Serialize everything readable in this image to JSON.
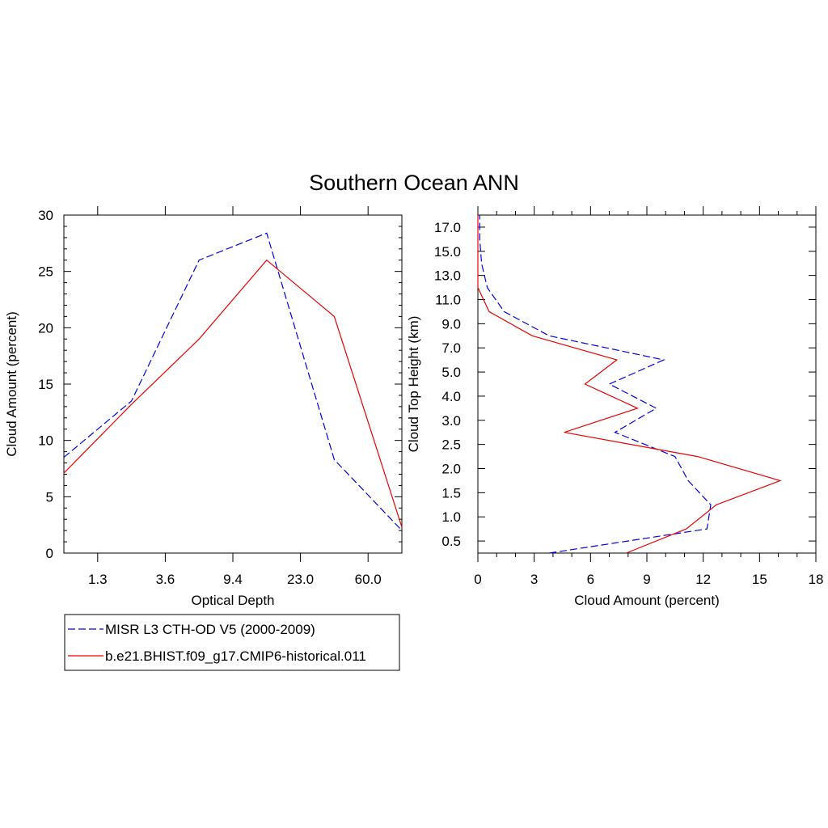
{
  "title": "Southern Ocean ANN",
  "colors": {
    "obs": "#0000ee",
    "model": "#ee0000"
  },
  "legend": [
    {
      "label": "MISR L3 CTH-OD V5 (2000-2009)",
      "color": "#0000ee",
      "dash": true
    },
    {
      "label": "b.e21.BHIST.f09_g17.CMIP6-historical.011",
      "color": "#ee0000",
      "dash": false
    }
  ],
  "chart_data": [
    {
      "type": "line",
      "xlabel": "Optical Depth",
      "ylabel": "Cloud Amount (percent)",
      "ylim": [
        0,
        30
      ],
      "yticks": [
        0,
        5,
        10,
        15,
        20,
        25,
        30
      ],
      "xtick_labels": [
        "1.3",
        "3.6",
        "9.4",
        "23.0",
        "60.0"
      ],
      "series": [
        {
          "name": "MISR L3 CTH-OD V5 (2000-2009)",
          "style": "dashed",
          "values": [
            8.5,
            13.5,
            26.0,
            28.4,
            8.3,
            2.0
          ]
        },
        {
          "name": "b.e21.BHIST.f09_g17.CMIP6-historical.011",
          "style": "solid",
          "values": [
            7.1,
            13.2,
            19.0,
            26.0,
            21.0,
            2.3
          ]
        }
      ]
    },
    {
      "type": "line",
      "xlabel": "Cloud Amount (percent)",
      "ylabel": "Cloud Top Height (km)",
      "xlim": [
        0,
        18
      ],
      "xticks": [
        0,
        3,
        6,
        9,
        12,
        15,
        18
      ],
      "ytick_labels": [
        "0.5",
        "1.0",
        "1.5",
        "2.0",
        "2.5",
        "3.0",
        "4.0",
        "5.0",
        "7.0",
        "9.0",
        "11.0",
        "13.0",
        "15.0",
        "17.0"
      ],
      "series": [
        {
          "name": "MISR L3 CTH-OD V5 (2000-2009)",
          "style": "dashed",
          "values": [
            3.8,
            12.2,
            12.4,
            11.2,
            10.5,
            7.3,
            9.5,
            7.0,
            9.9,
            3.8,
            1.4,
            0.5,
            0.2,
            0.1,
            0.1
          ]
        },
        {
          "name": "b.e21.BHIST.f09_g17.CMIP6-historical.011",
          "style": "solid",
          "values": [
            7.9,
            11.1,
            12.7,
            16.1,
            11.7,
            4.6,
            8.5,
            5.7,
            7.4,
            2.9,
            0.6,
            0.0,
            0.0,
            0.0,
            0.0
          ]
        }
      ]
    }
  ]
}
